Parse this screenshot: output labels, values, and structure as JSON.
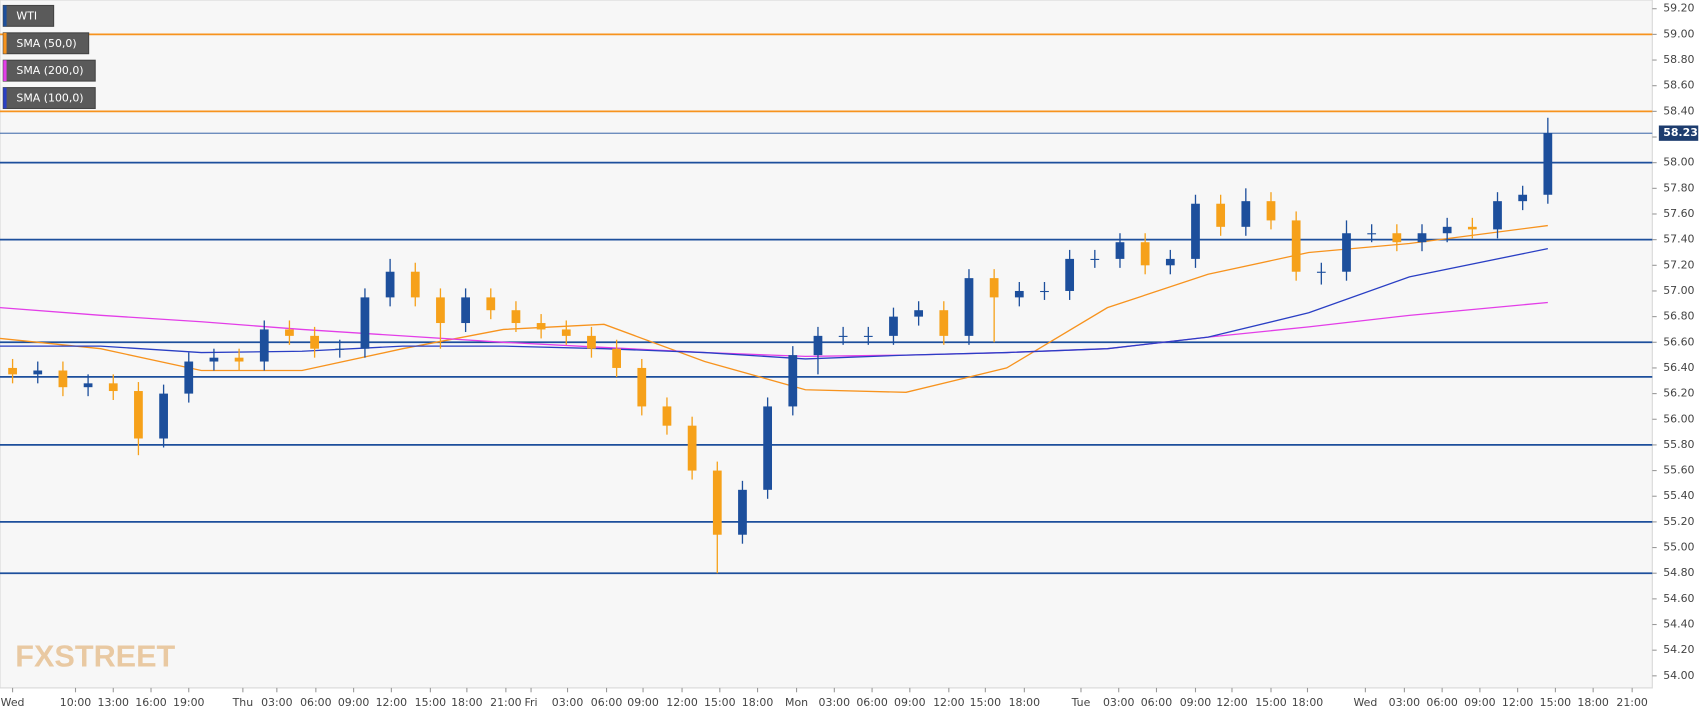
{
  "chart_data": {
    "type": "candlestick",
    "watermark": "FXSTREET",
    "ylim": [
      53.906,
      59.268
    ],
    "xlim": [
      0,
      131.3
    ],
    "yticks": [
      {
        "value": 54.0,
        "label": "54.00"
      },
      {
        "value": 54.2,
        "label": "54.20"
      },
      {
        "value": 54.4,
        "label": "54.40"
      },
      {
        "value": 54.6,
        "label": "54.60"
      },
      {
        "value": 54.8,
        "label": "54.80"
      },
      {
        "value": 55.0,
        "label": "55.00"
      },
      {
        "value": 55.2,
        "label": "55.20"
      },
      {
        "value": 55.4,
        "label": "55.40"
      },
      {
        "value": 55.6,
        "label": "55.60"
      },
      {
        "value": 55.8,
        "label": "55.80"
      },
      {
        "value": 56.0,
        "label": "56.00"
      },
      {
        "value": 56.2,
        "label": "56.20"
      },
      {
        "value": 56.4,
        "label": "56.40"
      },
      {
        "value": 56.6,
        "label": "56.60"
      },
      {
        "value": 56.8,
        "label": "56.80"
      },
      {
        "value": 57.0,
        "label": "57.00"
      },
      {
        "value": 57.2,
        "label": "57.20"
      },
      {
        "value": 57.4,
        "label": "57.40"
      },
      {
        "value": 57.6,
        "label": "57.60"
      },
      {
        "value": 57.8,
        "label": "57.80"
      },
      {
        "value": 58.0,
        "label": "58.00"
      },
      {
        "value": 58.2,
        "label": "58.20"
      },
      {
        "value": 58.4,
        "label": "58.40"
      },
      {
        "value": 58.6,
        "label": "58.60"
      },
      {
        "value": 58.8,
        "label": "58.80"
      },
      {
        "value": 59.0,
        "label": "59.00"
      },
      {
        "value": 59.2,
        "label": "59.20"
      }
    ],
    "xticks": [
      {
        "value": 1,
        "label": "Wed"
      },
      {
        "value": 6,
        "label": "10:00"
      },
      {
        "value": 9,
        "label": "13:00"
      },
      {
        "value": 12,
        "label": "16:00"
      },
      {
        "value": 15,
        "label": "19:00"
      },
      {
        "value": 19.3,
        "label": "Thu"
      },
      {
        "value": 22,
        "label": "03:00"
      },
      {
        "value": 25.1,
        "label": "06:00"
      },
      {
        "value": 28.1,
        "label": "09:00"
      },
      {
        "value": 31.1,
        "label": "12:00"
      },
      {
        "value": 34.2,
        "label": "15:00"
      },
      {
        "value": 37.1,
        "label": "18:00"
      },
      {
        "value": 40.2,
        "label": "21:00"
      },
      {
        "value": 42.2,
        "label": "Fri"
      },
      {
        "value": 45.1,
        "label": "03:00"
      },
      {
        "value": 48.2,
        "label": "06:00"
      },
      {
        "value": 51.1,
        "label": "09:00"
      },
      {
        "value": 54.2,
        "label": "12:00"
      },
      {
        "value": 57.2,
        "label": "15:00"
      },
      {
        "value": 60.2,
        "label": "18:00"
      },
      {
        "value": 63.3,
        "label": "Mon"
      },
      {
        "value": 66.3,
        "label": "03:00"
      },
      {
        "value": 69.3,
        "label": "06:00"
      },
      {
        "value": 72.3,
        "label": "09:00"
      },
      {
        "value": 75.4,
        "label": "12:00"
      },
      {
        "value": 78.3,
        "label": "15:00"
      },
      {
        "value": 81.4,
        "label": "18:00"
      },
      {
        "value": 85.9,
        "label": "Tue"
      },
      {
        "value": 88.9,
        "label": "03:00"
      },
      {
        "value": 91.9,
        "label": "06:00"
      },
      {
        "value": 95,
        "label": "09:00"
      },
      {
        "value": 97.9,
        "label": "12:00"
      },
      {
        "value": 101,
        "label": "15:00"
      },
      {
        "value": 103.9,
        "label": "18:00"
      },
      {
        "value": 108.5,
        "label": "Wed"
      },
      {
        "value": 111.6,
        "label": "03:00"
      },
      {
        "value": 114.6,
        "label": "06:00"
      },
      {
        "value": 117.6,
        "label": "09:00"
      },
      {
        "value": 120.6,
        "label": "12:00"
      },
      {
        "value": 123.6,
        "label": "15:00"
      },
      {
        "value": 126.6,
        "label": "18:00"
      },
      {
        "value": 129.7,
        "label": "21:00"
      }
    ],
    "series": [
      {
        "name": "WTI",
        "color": "#1d4f9c",
        "up_color": "#1d4f9c",
        "down_color": "#f6a11a",
        "x": [
          1,
          3,
          5,
          7,
          9,
          11,
          13,
          15,
          17,
          19,
          21,
          23,
          25,
          27,
          29,
          31,
          33,
          35,
          37,
          39,
          41,
          43,
          45,
          47,
          49,
          51,
          53,
          55,
          57,
          59,
          61,
          63,
          65,
          67,
          69,
          71,
          73,
          75,
          77,
          79,
          81,
          83,
          85,
          87,
          89,
          91,
          93,
          95,
          97,
          99,
          101,
          103,
          105,
          107,
          109,
          111,
          113,
          115,
          117,
          119,
          121,
          123
        ],
        "open": [
          56.4,
          56.35,
          56.38,
          56.25,
          56.28,
          56.22,
          55.85,
          56.2,
          56.45,
          56.48,
          56.45,
          56.7,
          56.65,
          56.55,
          56.55,
          56.95,
          57.15,
          56.95,
          56.75,
          56.95,
          56.85,
          56.75,
          56.7,
          56.65,
          56.55,
          56.4,
          56.1,
          55.95,
          55.6,
          55.1,
          55.45,
          56.1,
          56.5,
          56.65,
          56.65,
          56.65,
          56.8,
          56.85,
          56.65,
          57.1,
          56.95,
          57.0,
          57.0,
          57.25,
          57.25,
          57.38,
          57.2,
          57.25,
          57.68,
          57.5,
          57.7,
          57.55,
          57.15,
          57.15,
          57.45,
          57.45,
          57.38,
          57.45,
          57.5,
          57.48,
          57.7,
          57.75
        ],
        "high": [
          56.47,
          56.45,
          56.45,
          56.35,
          56.35,
          56.29,
          56.27,
          56.52,
          56.55,
          56.55,
          56.77,
          56.77,
          56.72,
          56.62,
          57.02,
          57.25,
          57.22,
          57.02,
          57.02,
          57.02,
          56.92,
          56.82,
          56.77,
          56.72,
          56.62,
          56.47,
          56.17,
          56.02,
          55.67,
          55.52,
          56.17,
          56.57,
          56.72,
          56.72,
          56.72,
          56.87,
          56.92,
          56.92,
          57.17,
          57.17,
          57.07,
          57.07,
          57.32,
          57.32,
          57.45,
          57.45,
          57.32,
          57.75,
          57.75,
          57.8,
          57.77,
          57.62,
          57.22,
          57.55,
          57.52,
          57.52,
          57.52,
          57.57,
          57.57,
          57.77,
          57.82,
          58.35
        ],
        "low": [
          56.28,
          56.28,
          56.18,
          56.18,
          56.15,
          55.72,
          55.78,
          56.13,
          56.38,
          56.38,
          56.38,
          56.58,
          56.48,
          56.48,
          56.48,
          56.88,
          56.88,
          56.55,
          56.68,
          56.78,
          56.68,
          56.63,
          56.58,
          56.48,
          56.33,
          56.03,
          55.88,
          55.53,
          54.8,
          55.03,
          55.38,
          56.03,
          56.35,
          56.58,
          56.58,
          56.58,
          56.73,
          56.58,
          56.58,
          56.6,
          56.88,
          56.93,
          56.93,
          57.18,
          57.18,
          57.13,
          57.13,
          57.18,
          57.43,
          57.43,
          57.48,
          57.08,
          57.05,
          57.08,
          57.38,
          57.31,
          57.31,
          57.38,
          57.41,
          57.41,
          57.63,
          57.68
        ],
        "close": [
          56.35,
          56.38,
          56.25,
          56.28,
          56.22,
          55.85,
          56.2,
          56.45,
          56.48,
          56.45,
          56.7,
          56.65,
          56.55,
          56.55,
          56.95,
          57.15,
          56.95,
          56.75,
          56.95,
          56.85,
          56.75,
          56.7,
          56.65,
          56.55,
          56.4,
          56.1,
          55.95,
          55.6,
          55.1,
          55.45,
          56.1,
          56.5,
          56.65,
          56.65,
          56.65,
          56.8,
          56.85,
          56.65,
          57.1,
          56.95,
          57.0,
          57.0,
          57.25,
          57.25,
          57.38,
          57.2,
          57.25,
          57.68,
          57.5,
          57.7,
          57.55,
          57.15,
          57.15,
          57.45,
          57.45,
          57.38,
          57.45,
          57.5,
          57.48,
          57.7,
          57.75,
          58.23
        ]
      }
    ],
    "indicators": [
      {
        "name": "SMA (50,0)",
        "color": "#f7931e",
        "x": [
          0,
          8,
          16,
          24,
          32,
          40,
          48,
          56,
          64,
          72,
          80,
          88,
          96,
          104,
          112,
          123
        ],
        "values": [
          56.63,
          56.55,
          56.38,
          56.38,
          56.55,
          56.7,
          56.74,
          56.45,
          56.23,
          56.21,
          56.4,
          56.87,
          57.13,
          57.3,
          57.37,
          57.51
        ]
      },
      {
        "name": "SMA (200,0)",
        "color": "#e33ee8",
        "x": [
          0,
          8,
          16,
          24,
          32,
          40,
          48,
          56,
          64,
          72,
          80,
          88,
          96,
          104,
          112,
          123
        ],
        "values": [
          56.87,
          56.81,
          56.76,
          56.7,
          56.65,
          56.6,
          56.56,
          56.52,
          56.49,
          56.5,
          56.52,
          56.55,
          56.64,
          56.72,
          56.81,
          56.91
        ]
      },
      {
        "name": "SMA (100,0)",
        "color": "#2a3fc4",
        "x": [
          0,
          8,
          16,
          24,
          32,
          40,
          48,
          56,
          64,
          72,
          80,
          88,
          96,
          104,
          112,
          123
        ],
        "values": [
          56.57,
          56.57,
          56.52,
          56.53,
          56.57,
          56.57,
          56.55,
          56.52,
          56.47,
          56.5,
          56.52,
          56.55,
          56.64,
          56.83,
          57.11,
          57.33
        ]
      }
    ],
    "levels": [
      {
        "value": 59.0,
        "color": "#f7931e"
      },
      {
        "value": 58.4,
        "color": "#f7931e"
      },
      {
        "value": 58.0,
        "color": "#1d4f9c"
      },
      {
        "value": 57.4,
        "color": "#1d4f9c"
      },
      {
        "value": 56.6,
        "color": "#1d4f9c"
      },
      {
        "value": 56.33,
        "color": "#1d4f9c"
      },
      {
        "value": 55.8,
        "color": "#1d4f9c"
      },
      {
        "value": 55.2,
        "color": "#1d4f9c"
      },
      {
        "value": 54.8,
        "color": "#1d4f9c"
      }
    ],
    "last_price": 58.23
  }
}
